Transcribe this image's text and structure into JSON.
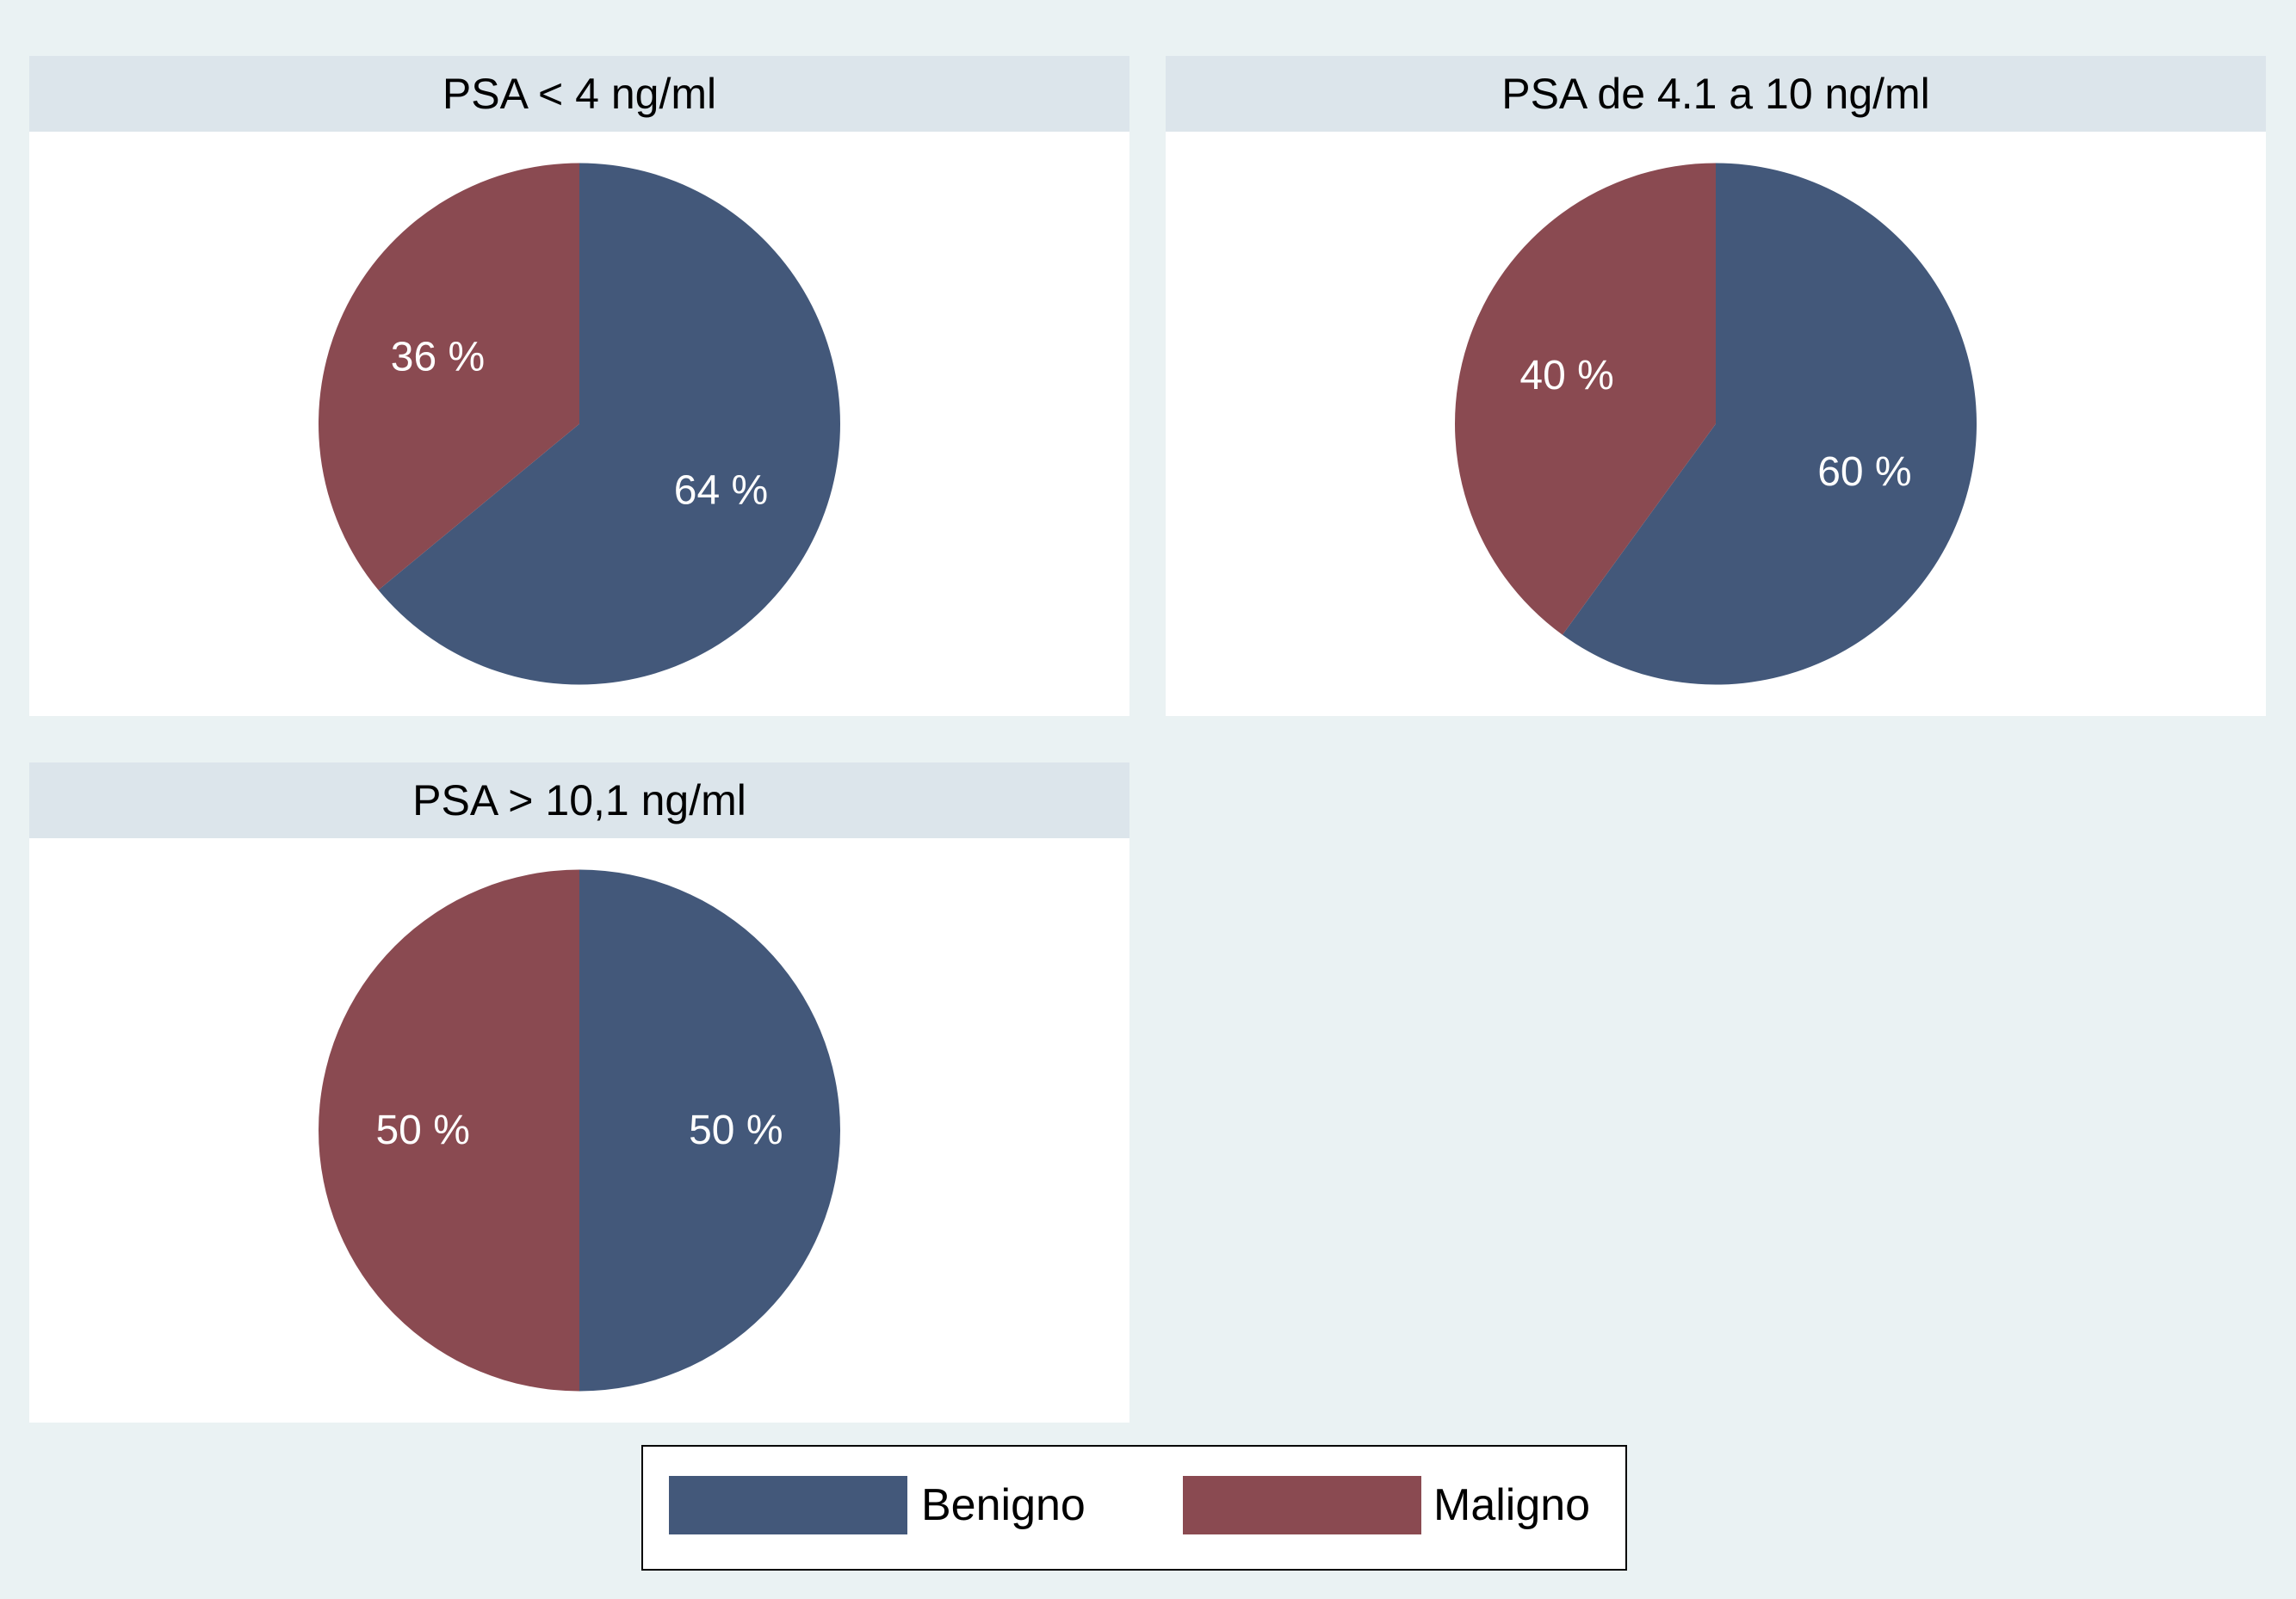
{
  "chart_data": [
    {
      "type": "pie",
      "title": "PSA < 4 ng/ml",
      "categories": [
        "Benigno",
        "Maligno"
      ],
      "values": [
        64,
        36
      ],
      "value_labels": [
        "64 %",
        "36 %"
      ]
    },
    {
      "type": "pie",
      "title": "PSA de 4.1 a 10 ng/ml",
      "categories": [
        "Benigno",
        "Maligno"
      ],
      "values": [
        60,
        40
      ],
      "value_labels": [
        "60 %",
        "40 %"
      ]
    },
    {
      "type": "pie",
      "title": "PSA > 10,1 ng/ml",
      "categories": [
        "Benigno",
        "Maligno"
      ],
      "values": [
        50,
        50
      ],
      "value_labels": [
        "50 %",
        "50 %"
      ]
    }
  ],
  "legend": {
    "placement": "bottom",
    "items": [
      {
        "label": "Benigno",
        "color": "#43587A"
      },
      {
        "label": "Maligno",
        "color": "#8A4A51"
      }
    ]
  },
  "colors": {
    "background": "#EAF2F3",
    "panel_header": "#DCE5EB",
    "panel_body": "#FFFFFF",
    "slice_label": "#FFFFFF"
  }
}
